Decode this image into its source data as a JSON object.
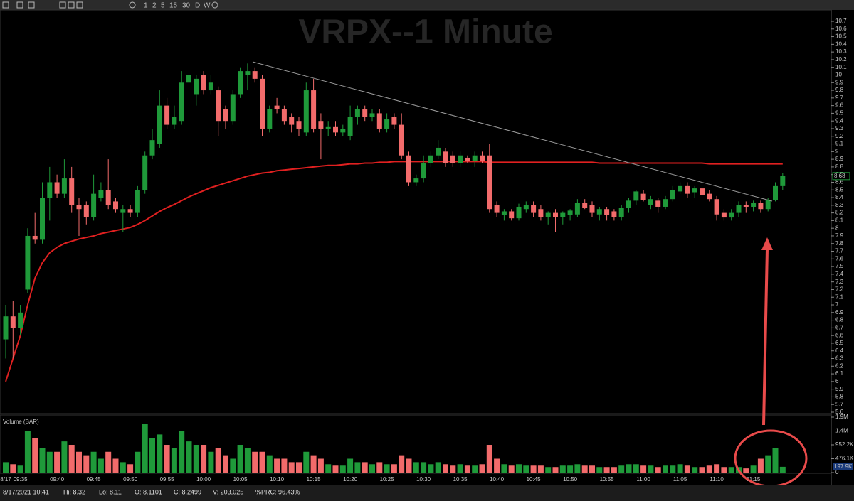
{
  "toolbar": {
    "intervals": [
      "1",
      "2",
      "5",
      "15",
      "30",
      "D",
      "W"
    ]
  },
  "chart_data": {
    "type": "candlestick",
    "title": "VRPX--1 Minute",
    "categories": [
      "8/17",
      null,
      "09:35",
      null,
      null,
      null,
      null,
      "09:40",
      null,
      null,
      null,
      null,
      "09:45",
      null,
      null,
      null,
      null,
      "09:50",
      null,
      null,
      null,
      null,
      "09:55",
      null,
      null,
      null,
      null,
      "10:00",
      null,
      null,
      null,
      null,
      "10:05",
      null,
      null,
      null,
      null,
      "10:10",
      null,
      null,
      null,
      null,
      "10:15",
      null,
      null,
      null,
      null,
      "10:20",
      null,
      null,
      null,
      null,
      "10:25",
      null,
      null,
      null,
      null,
      "10:30",
      null,
      null,
      null,
      null,
      "10:35",
      null,
      null,
      null,
      null,
      "10:40",
      null,
      null,
      null,
      null,
      "10:45",
      null,
      null,
      null,
      null,
      "10:50",
      null,
      null,
      null,
      null,
      "10:55",
      null,
      null,
      null,
      null,
      "11:00",
      null,
      null,
      null,
      null,
      "11:05",
      null,
      null,
      null,
      null,
      "11:10",
      null,
      null,
      null,
      null,
      "11:15",
      null,
      null,
      null,
      null
    ],
    "open": [
      6.55,
      6.85,
      6.7,
      7.2,
      7.9,
      7.85,
      8.4,
      8.6,
      8.45,
      8.65,
      8.3,
      8.3,
      8.15,
      8.4,
      8.5,
      8.35,
      8.2,
      8.25,
      8.2,
      8.5,
      8.95,
      9.1,
      9.6,
      9.35,
      9.4,
      9.9,
      9.75,
      10.0,
      9.8,
      9.8,
      9.55,
      9.4,
      9.75,
      10.0,
      10.05,
      9.95,
      9.3,
      9.6,
      9.55,
      9.45,
      9.4,
      9.25,
      9.8,
      9.4,
      9.3,
      9.32,
      9.25,
      9.2,
      9.45,
      9.55,
      9.45,
      9.5,
      9.3,
      9.45,
      9.35,
      8.95,
      8.6,
      8.65,
      8.85,
      8.95,
      9.0,
      8.95,
      8.85,
      8.92,
      8.88,
      8.95,
      8.95,
      8.3,
      8.17,
      8.22,
      8.13,
      8.25,
      8.3,
      8.25,
      8.15,
      8.2,
      8.15,
      8.17,
      8.18,
      8.33,
      8.3,
      8.18,
      8.25,
      8.22,
      8.15,
      8.27,
      8.36,
      8.45,
      8.3,
      8.36,
      8.28,
      8.38,
      8.48,
      8.55,
      8.47,
      8.52,
      8.45,
      8.38,
      8.2,
      8.14,
      8.2,
      8.3,
      8.28,
      8.33,
      8.25,
      8.37,
      8.55
    ],
    "high": [
      7.0,
      7.05,
      7.0,
      8.0,
      8.2,
      8.6,
      8.8,
      8.7,
      8.9,
      8.8,
      8.4,
      8.35,
      8.7,
      8.6,
      8.9,
      8.4,
      8.3,
      8.3,
      8.55,
      9.0,
      9.3,
      9.8,
      9.7,
      9.6,
      10.05,
      10.0,
      10.0,
      10.05,
      10.0,
      9.85,
      9.6,
      9.8,
      10.1,
      10.15,
      10.1,
      10.0,
      9.6,
      9.7,
      9.6,
      9.5,
      9.45,
      9.9,
      9.95,
      9.5,
      9.4,
      9.4,
      9.35,
      9.6,
      9.6,
      9.6,
      9.55,
      9.55,
      9.5,
      9.5,
      9.5,
      9.0,
      8.7,
      8.95,
      9.0,
      9.15,
      9.05,
      9.0,
      9.0,
      8.95,
      9.0,
      9.0,
      9.1,
      8.35,
      8.25,
      8.25,
      8.32,
      8.35,
      8.35,
      8.3,
      8.22,
      8.25,
      8.22,
      8.25,
      8.38,
      8.38,
      8.35,
      8.28,
      8.28,
      8.25,
      8.3,
      8.4,
      8.5,
      8.5,
      8.42,
      8.4,
      8.42,
      8.55,
      8.6,
      8.6,
      8.55,
      8.55,
      8.5,
      8.42,
      8.25,
      8.25,
      8.35,
      8.35,
      8.36,
      8.36,
      8.4,
      8.6,
      8.72
    ],
    "low": [
      6.3,
      6.3,
      6.6,
      7.15,
      7.8,
      7.8,
      8.1,
      8.4,
      8.4,
      8.2,
      7.9,
      8.05,
      8.1,
      8.35,
      8.25,
      8.2,
      7.95,
      8.15,
      8.15,
      8.45,
      8.9,
      9.05,
      9.3,
      9.3,
      9.35,
      9.8,
      9.6,
      9.75,
      9.75,
      9.2,
      9.3,
      9.35,
      9.7,
      9.8,
      9.9,
      9.2,
      9.25,
      9.5,
      9.35,
      9.25,
      9.2,
      9.2,
      9.25,
      8.9,
      9.2,
      9.2,
      9.2,
      9.15,
      9.35,
      9.4,
      9.4,
      9.25,
      9.25,
      9.3,
      8.9,
      8.55,
      8.55,
      8.6,
      8.8,
      8.9,
      8.8,
      8.8,
      8.8,
      8.85,
      8.8,
      8.85,
      8.2,
      8.15,
      8.1,
      8.1,
      8.1,
      8.2,
      8.15,
      8.1,
      8.05,
      7.95,
      8.05,
      8.1,
      8.15,
      8.25,
      8.15,
      8.1,
      8.1,
      8.1,
      8.1,
      8.2,
      8.3,
      8.35,
      8.25,
      8.2,
      8.25,
      8.35,
      8.45,
      8.4,
      8.4,
      8.4,
      8.35,
      8.1,
      8.1,
      8.1,
      8.15,
      8.2,
      8.22,
      8.2,
      8.22,
      8.35,
      8.5
    ],
    "close": [
      6.85,
      6.7,
      6.9,
      7.9,
      7.85,
      8.4,
      8.6,
      8.45,
      8.65,
      8.3,
      8.25,
      8.15,
      8.45,
      8.5,
      8.3,
      8.25,
      8.25,
      8.2,
      8.5,
      8.95,
      9.15,
      9.6,
      9.35,
      9.45,
      9.9,
      10.0,
      9.95,
      9.8,
      9.9,
      9.4,
      9.4,
      9.75,
      10.05,
      10.05,
      9.95,
      9.3,
      9.55,
      9.55,
      9.4,
      9.35,
      9.3,
      9.8,
      9.3,
      9.3,
      9.32,
      9.25,
      9.3,
      9.45,
      9.55,
      9.45,
      9.5,
      9.3,
      9.42,
      9.35,
      8.95,
      8.6,
      8.65,
      8.85,
      8.95,
      9.05,
      8.85,
      8.85,
      8.95,
      8.88,
      8.95,
      8.88,
      8.25,
      8.2,
      8.22,
      8.13,
      8.28,
      8.3,
      8.2,
      8.15,
      8.2,
      8.15,
      8.2,
      8.23,
      8.33,
      8.27,
      8.2,
      8.25,
      8.17,
      8.15,
      8.27,
      8.36,
      8.48,
      8.37,
      8.38,
      8.28,
      8.38,
      8.5,
      8.55,
      8.45,
      8.52,
      8.43,
      8.38,
      8.18,
      8.14,
      8.2,
      8.3,
      8.28,
      8.33,
      8.25,
      8.37,
      8.55,
      8.68
    ],
    "up_color": "#1f9a3a",
    "down_color": "#f26b6b",
    "ylim": [
      5.6,
      10.7
    ],
    "yticks": [
      5.6,
      5.7,
      5.8,
      5.9,
      6,
      6.1,
      6.2,
      6.3,
      6.4,
      6.5,
      6.6,
      6.7,
      6.8,
      6.9,
      7,
      7.1,
      7.2,
      7.3,
      7.4,
      7.5,
      7.6,
      7.7,
      7.8,
      7.9,
      8,
      8.1,
      8.2,
      8.3,
      8.4,
      8.5,
      8.6,
      8.7,
      8.8,
      8.9,
      9,
      9.1,
      9.2,
      9.3,
      9.4,
      9.5,
      9.6,
      9.7,
      9.8,
      9.9,
      10,
      10.1,
      10.2,
      10.3,
      10.4,
      10.5,
      10.6,
      10.7
    ],
    "price_marker": 8.68,
    "overlay": {
      "color": "#e02020",
      "values": [
        6.0,
        6.3,
        6.6,
        7.0,
        7.35,
        7.55,
        7.68,
        7.75,
        7.8,
        7.83,
        7.86,
        7.88,
        7.9,
        7.93,
        7.95,
        7.97,
        7.99,
        8.01,
        8.05,
        8.1,
        8.16,
        8.22,
        8.27,
        8.31,
        8.36,
        8.41,
        8.45,
        8.49,
        8.53,
        8.56,
        8.59,
        8.62,
        8.65,
        8.68,
        8.7,
        8.72,
        8.73,
        8.75,
        8.76,
        8.77,
        8.78,
        8.79,
        8.8,
        8.81,
        8.82,
        8.82,
        8.83,
        8.84,
        8.84,
        8.85,
        8.85,
        8.86,
        8.86,
        8.87,
        8.87,
        8.87,
        8.87,
        8.87,
        8.87,
        8.87,
        8.87,
        8.87,
        8.87,
        8.87,
        8.87,
        8.87,
        8.86,
        8.86,
        8.86,
        8.86,
        8.86,
        8.86,
        8.86,
        8.86,
        8.86,
        8.86,
        8.86,
        8.86,
        8.86,
        8.86,
        8.86,
        8.85,
        8.85,
        8.85,
        8.85,
        8.85,
        8.85,
        8.85,
        8.85,
        8.85,
        8.85,
        8.85,
        8.85,
        8.85,
        8.85,
        8.85,
        8.84,
        8.84,
        8.84,
        8.84,
        8.84,
        8.84,
        8.84,
        8.84,
        8.84,
        8.84,
        8.84
      ]
    },
    "volume": {
      "label": "Volume (BAR)",
      "values": [
        357000,
        286000,
        238000,
        1428000,
        1190000,
        833000,
        714000,
        714000,
        1071000,
        952000,
        714000,
        595000,
        714000,
        476000,
        714000,
        476000,
        357000,
        286000,
        714000,
        1666000,
        1190000,
        1309000,
        952000,
        833000,
        1428000,
        1071000,
        952000,
        952000,
        714000,
        833000,
        595000,
        476000,
        952000,
        833000,
        714000,
        714000,
        595000,
        476000,
        476000,
        357000,
        357000,
        714000,
        595000,
        476000,
        286000,
        238000,
        238000,
        476000,
        357000,
        357000,
        286000,
        357000,
        286000,
        286000,
        595000,
        476000,
        357000,
        357000,
        286000,
        357000,
        286000,
        238000,
        286000,
        238000,
        238000,
        286000,
        952000,
        476000,
        286000,
        238000,
        286000,
        238000,
        238000,
        238000,
        190000,
        190000,
        238000,
        238000,
        286000,
        238000,
        238000,
        190000,
        190000,
        190000,
        238000,
        286000,
        286000,
        238000,
        238000,
        190000,
        238000,
        238000,
        286000,
        238000,
        190000,
        190000,
        238000,
        286000,
        190000,
        190000,
        190000,
        143000,
        238000,
        476000,
        595000,
        833000,
        197900
      ],
      "ylim": [
        0,
        1904400
      ],
      "yticks": [
        0,
        {
          "value": 476100,
          "label": "476.1K"
        },
        {
          "value": 952200,
          "label": "952.2K"
        },
        {
          "value": 1428300,
          "label": "1.4M"
        },
        {
          "value": 1904400,
          "label": "1.9M"
        }
      ],
      "marker": {
        "value": 197900,
        "label": "197.9K"
      }
    }
  },
  "status": [
    "8/17/2021 10:41",
    "Hi: 8.32",
    "Lo: 8.11",
    "O: 8.1101",
    "C: 8.2499",
    "V: 203,025",
    "%PRC: 96.43%"
  ]
}
